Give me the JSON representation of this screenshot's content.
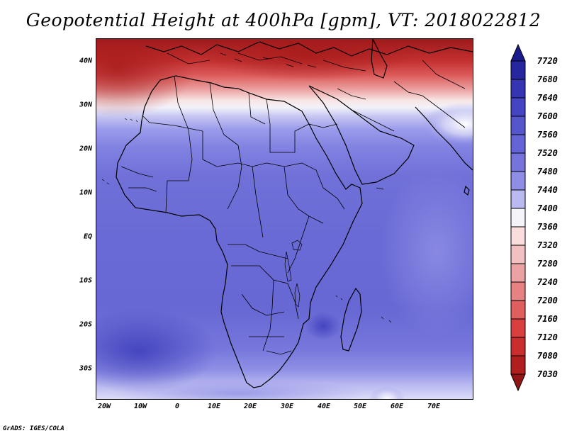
{
  "title": "Geopotential Height at 400hPa [gpm], VT: 2018022812",
  "credit": "GrADS: IGES/COLA",
  "map": {
    "lat_labels": [
      "40N",
      "30N",
      "20N",
      "10N",
      "EQ",
      "10S",
      "20S",
      "30S"
    ],
    "lon_labels": [
      "20W",
      "10W",
      "0",
      "10E",
      "20E",
      "30E",
      "40E",
      "50E",
      "60E",
      "70E"
    ]
  },
  "colorbar": {
    "labels": [
      "7720",
      "7680",
      "7640",
      "7600",
      "7560",
      "7520",
      "7480",
      "7440",
      "7400",
      "7360",
      "7320",
      "7280",
      "7240",
      "7200",
      "7160",
      "7120",
      "7080",
      "7030"
    ],
    "colors": [
      "#1a1a8c",
      "#26269e",
      "#3535b4",
      "#4545c4",
      "#5656cc",
      "#6464d6",
      "#7474dc",
      "#8e8ee6",
      "#babaf0",
      "#f4f4fa",
      "#fadede",
      "#f2c0c0",
      "#eba2a2",
      "#e68282",
      "#df5e5e",
      "#d93f3f",
      "#c92d2d",
      "#b01e1e",
      "#911515"
    ]
  }
}
